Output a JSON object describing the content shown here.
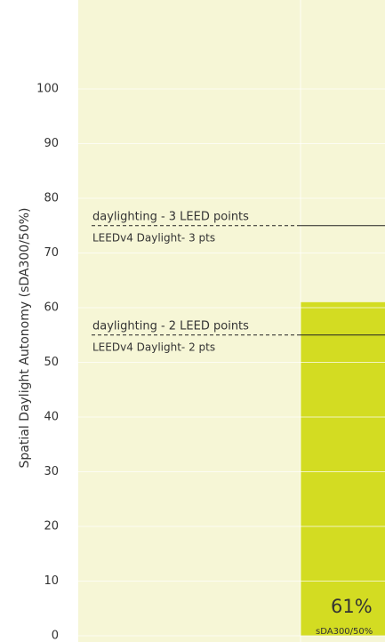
{
  "chart_data": {
    "type": "bar",
    "ylabel": "Spatial Daylight Autonomy (sDA300/50%)",
    "categories": [
      null
    ],
    "values": [
      61
    ],
    "value_labels": [
      "61%"
    ],
    "bar_sublabel": "sDA300/50%",
    "color": "#d3dc22",
    "background": "#f6f6d6",
    "ylim": [
      0,
      100
    ],
    "yticks": [
      0,
      10,
      20,
      30,
      40,
      50,
      60,
      70,
      80,
      90,
      100
    ],
    "grid": true,
    "thresholds": [
      {
        "value": 75,
        "label": "daylighting - 3 LEED points",
        "sublabel": "LEEDv4 Daylight- 3 pts"
      },
      {
        "value": 55,
        "label": "daylighting - 2 LEED points",
        "sublabel": "LEEDv4 Daylight- 2 pts"
      }
    ]
  }
}
